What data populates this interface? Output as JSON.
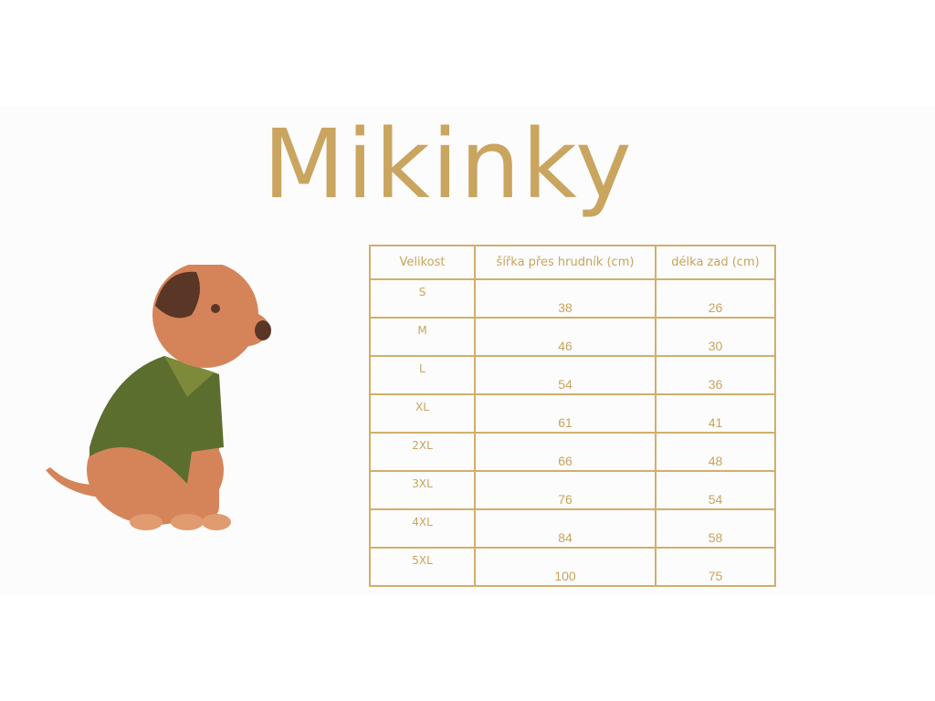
{
  "title": "Mikinky",
  "table": {
    "headers": [
      "Velikost",
      "šířka přes hrudník (cm)",
      "délka zad (cm)"
    ],
    "rows": [
      [
        "S",
        "38",
        "26"
      ],
      [
        "M",
        "46",
        "30"
      ],
      [
        "L",
        "54",
        "36"
      ],
      [
        "XL",
        "61",
        "41"
      ],
      [
        "2XL",
        "66",
        "48"
      ],
      [
        "3XL",
        "76",
        "54"
      ],
      [
        "4XL",
        "84",
        "58"
      ],
      [
        "5XL",
        "100",
        "75"
      ]
    ]
  },
  "colors": {
    "accent": "#c9a35c",
    "dog_fur": "#d5845a",
    "sweater": "#5b6e2e",
    "ear": "#5a3626"
  },
  "illustration": "dog-in-sweater"
}
